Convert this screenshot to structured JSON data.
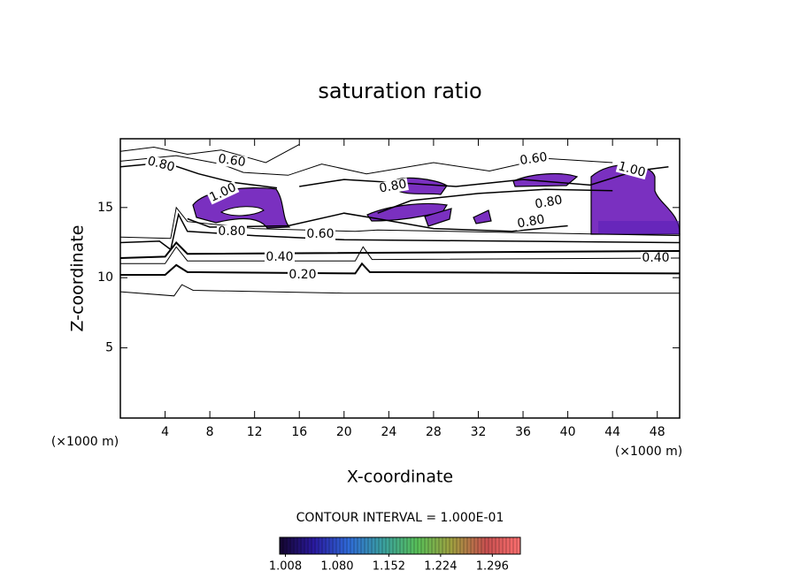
{
  "chart_data": {
    "type": "contour",
    "title": "saturation ratio",
    "x_label": "X-coordinate",
    "y_label": "Z-coordinate",
    "x_unit": "(×1000 m)",
    "y_unit": "(×1000 m)",
    "xlim": [
      0,
      50
    ],
    "ylim": [
      0,
      19.9
    ],
    "xticks": [
      4,
      8,
      12,
      16,
      20,
      24,
      28,
      32,
      36,
      40,
      44,
      48
    ],
    "yticks": [
      5,
      10,
      15
    ],
    "contour_levels": [
      {
        "value": 0.2,
        "label": "0.20"
      },
      {
        "value": 0.4,
        "label": "0.40"
      },
      {
        "value": 0.6,
        "label": "0.60"
      },
      {
        "value": 0.8,
        "label": "0.80"
      },
      {
        "value": 1.0,
        "label": "1.00"
      }
    ],
    "contour_interval_text": "CONTOUR INTERVAL = 1.000E-01",
    "colorbar_lim": [
      1.0,
      1.335
    ],
    "colorbar_ticks": [
      1.008,
      {
        "value": 1.08,
        "label": "1.080"
      },
      1.152,
      1.224,
      1.296
    ],
    "colormap": [
      "#14052e",
      "#2a1aa0",
      "#2f6ad8",
      "#3aa0a0",
      "#58c058",
      "#a0a040",
      "#c85050",
      "#ff7070"
    ],
    "region_color": "#7a30c0"
  }
}
